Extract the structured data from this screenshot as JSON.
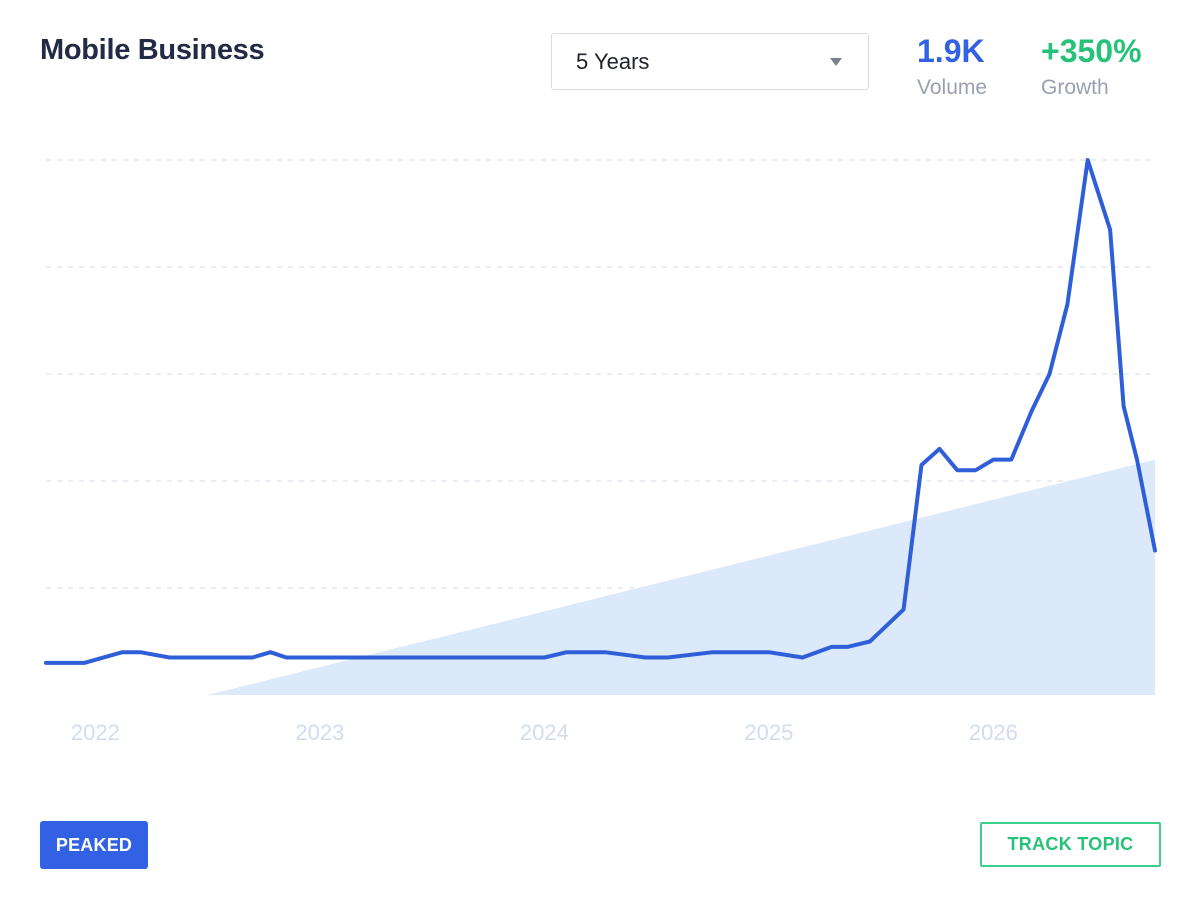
{
  "header": {
    "title": "Mobile Business",
    "range_select": {
      "value": "5 Years"
    },
    "volume": {
      "value": "1.9K",
      "label": "Volume",
      "color": "#3262e3"
    },
    "growth": {
      "value": "+350%",
      "label": "Growth",
      "color": "#27c27a"
    }
  },
  "status_badge": {
    "label": "PEAKED"
  },
  "track_button": {
    "label": "TRACK TOPIC"
  },
  "colors": {
    "line": "#2f5fd8",
    "trend_fill": "#dce9fb",
    "grid": "#dde2ea",
    "tick_text": "#d3dcee"
  },
  "chart_data": {
    "type": "line",
    "title": "Mobile Business",
    "x_ticks": [
      "2022",
      "2023",
      "2024",
      "2025",
      "2026"
    ],
    "x_range": [
      2021.78,
      2026.72
    ],
    "ylim": [
      0,
      100
    ],
    "grid": "horizontal dashed",
    "series": [
      {
        "x": [
          2021.78,
          2021.95,
          2022.12,
          2022.2,
          2022.33,
          2022.5,
          2022.7,
          2022.78,
          2022.85,
          2023.0,
          2023.2,
          2023.5,
          2023.8,
          2024.0,
          2024.1,
          2024.18,
          2024.27,
          2024.45,
          2024.55,
          2024.75,
          2024.9,
          2025.0,
          2025.15,
          2025.28,
          2025.35,
          2025.45,
          2025.6,
          2025.68,
          2025.76,
          2025.84,
          2025.92,
          2026.0,
          2026.08,
          2026.17,
          2026.25,
          2026.33,
          2026.42,
          2026.52,
          2026.58,
          2026.64,
          2026.72
        ],
        "values": [
          6,
          6,
          8,
          8,
          7,
          7,
          7,
          8,
          7,
          7,
          7,
          7,
          7,
          7,
          8,
          8,
          8,
          7,
          7,
          8,
          8,
          8,
          7,
          9,
          9,
          10,
          16,
          43,
          46,
          42,
          42,
          44,
          44,
          53,
          60,
          73,
          100,
          87,
          54,
          44,
          27
        ]
      }
    ],
    "trend": {
      "start_x": 2022.5,
      "start_value": 0,
      "end_x": 2026.72,
      "end_value": 44
    }
  }
}
